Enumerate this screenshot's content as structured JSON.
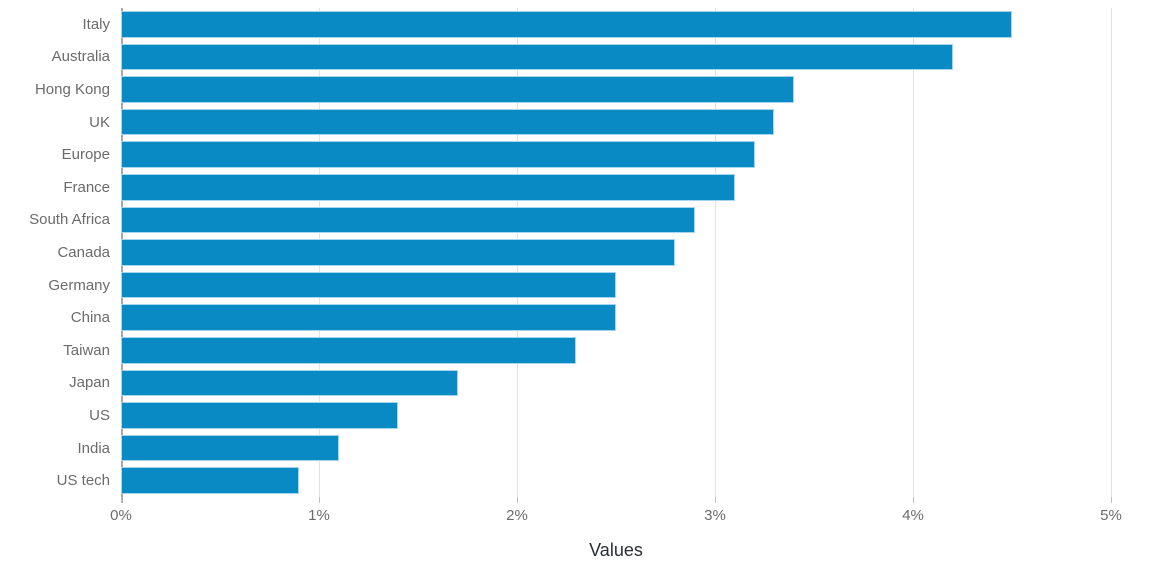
{
  "chart_data": {
    "type": "bar",
    "orientation": "horizontal",
    "title": "",
    "xlabel": "Values",
    "ylabel": "",
    "categories": [
      "Italy",
      "Australia",
      "Hong Kong",
      "UK",
      "Europe",
      "France",
      "South Africa",
      "Canada",
      "Germany",
      "China",
      "Taiwan",
      "Japan",
      "US",
      "India",
      "US tech"
    ],
    "values": [
      4.5,
      4.2,
      3.4,
      3.3,
      3.2,
      3.1,
      2.9,
      2.8,
      2.5,
      2.5,
      2.3,
      1.7,
      1.4,
      1.1,
      0.9
    ],
    "value_unit": "%",
    "xlim": [
      0,
      5
    ],
    "x_ticks": [
      0,
      1,
      2,
      3,
      4,
      5
    ],
    "x_tick_labels": [
      "0%",
      "1%",
      "2%",
      "3%",
      "4%",
      "5%"
    ],
    "grid": "vertical",
    "legend_position": "none",
    "colors": {
      "bar_fill": "#0a8ac4",
      "bar_edge": "#a5d5ec",
      "gridline": "#e3e3e3",
      "axis_line": "#a8a8a8",
      "tick_mark": "#c2c2c2",
      "tick_label": "#6b6b6b",
      "category_label": "#6b6b6b",
      "xlabel_text": "#2b2e34"
    }
  }
}
